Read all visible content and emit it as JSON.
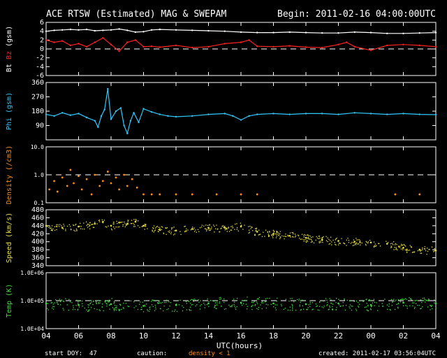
{
  "header": {
    "title": "ACE RTSW (Estimated) MAG & SWEPAM",
    "begin": "Begin: 2011-02-16 04:00:00UTC"
  },
  "colors": {
    "bt": "#ffffff",
    "bz": "#ff2020",
    "phi": "#2ec8ff",
    "density": "#ff8c1a",
    "speed": "#e8e040",
    "temp": "#40e040",
    "axis": "#ffffff"
  },
  "footer": {
    "start_doy_label": "start DOY:",
    "start_doy_value": "47",
    "caution_label": "caution:",
    "caution_note": "density < 1",
    "created": "created: 2011-02-17 03:56:04UTC"
  },
  "chart_data": {
    "type": "multi-panel time series",
    "x_label": "UTC(hours)",
    "x_range_hours": [
      4,
      28
    ],
    "x_tick_labels": [
      "04",
      "06",
      "08",
      "10",
      "12",
      "14",
      "16",
      "18",
      "20",
      "22",
      "00",
      "02",
      "04"
    ],
    "panels": [
      {
        "id": "mag",
        "ylabel_parts": [
          "Bt",
          "Bz",
          "(gsm)"
        ],
        "ylim": [
          -6,
          6
        ],
        "y_ticks": [
          -6,
          -4,
          -2,
          0,
          2,
          4,
          6
        ],
        "y_tick_labels": [
          "-6",
          "-4",
          "-2",
          "0",
          "2",
          "4",
          "6"
        ],
        "dashed_lines": [
          0
        ],
        "series": [
          {
            "name": "Bt",
            "style": "line",
            "points": [
              [
                4.0,
                4.0
              ],
              [
                4.5,
                4.2
              ],
              [
                5.0,
                4.3
              ],
              [
                5.5,
                4.4
              ],
              [
                6.0,
                4.3
              ],
              [
                6.5,
                4.4
              ],
              [
                7.0,
                4.1
              ],
              [
                7.5,
                4.2
              ],
              [
                8.0,
                4.3
              ],
              [
                8.5,
                4.5
              ],
              [
                9.0,
                4.2
              ],
              [
                9.5,
                3.8
              ],
              [
                10.0,
                3.9
              ],
              [
                10.5,
                4.3
              ],
              [
                11.0,
                4.4
              ],
              [
                12.0,
                4.3
              ],
              [
                13.0,
                4.2
              ],
              [
                14.0,
                4.1
              ],
              [
                15.0,
                4.0
              ],
              [
                16.0,
                3.8
              ],
              [
                17.0,
                3.7
              ],
              [
                18.0,
                3.7
              ],
              [
                19.0,
                3.8
              ],
              [
                20.0,
                3.7
              ],
              [
                21.0,
                3.6
              ],
              [
                22.0,
                3.6
              ],
              [
                23.0,
                3.8
              ],
              [
                24.0,
                3.7
              ],
              [
                25.0,
                3.5
              ],
              [
                26.0,
                3.5
              ],
              [
                27.0,
                3.6
              ],
              [
                28.0,
                3.7
              ]
            ]
          },
          {
            "name": "Bz",
            "style": "line",
            "points": [
              [
                4.0,
                2.0
              ],
              [
                4.5,
                1.5
              ],
              [
                5.0,
                1.8
              ],
              [
                5.5,
                0.8
              ],
              [
                6.0,
                1.2
              ],
              [
                6.5,
                0.5
              ],
              [
                7.0,
                1.5
              ],
              [
                7.5,
                2.5
              ],
              [
                8.0,
                1.0
              ],
              [
                8.5,
                -0.5
              ],
              [
                9.0,
                1.5
              ],
              [
                9.5,
                2.0
              ],
              [
                10.0,
                0.5
              ],
              [
                10.5,
                0.6
              ],
              [
                11.0,
                0.4
              ],
              [
                12.0,
                0.8
              ],
              [
                13.0,
                0.3
              ],
              [
                14.0,
                0.5
              ],
              [
                15.0,
                1.2
              ],
              [
                16.0,
                1.5
              ],
              [
                16.5,
                2.0
              ],
              [
                17.0,
                0.6
              ],
              [
                18.0,
                0.5
              ],
              [
                19.0,
                0.7
              ],
              [
                20.0,
                0.4
              ],
              [
                21.0,
                0.3
              ],
              [
                22.0,
                1.0
              ],
              [
                22.5,
                1.5
              ],
              [
                23.0,
                0.5
              ],
              [
                24.0,
                -0.3
              ],
              [
                25.0,
                0.8
              ],
              [
                26.0,
                1.0
              ],
              [
                27.0,
                0.8
              ],
              [
                28.0,
                0.5
              ]
            ]
          }
        ]
      },
      {
        "id": "phi",
        "ylabel_parts": [
          "Phi (gsm)"
        ],
        "ylim": [
          0,
          360
        ],
        "y_ticks": [
          90,
          180,
          270,
          360
        ],
        "y_tick_labels": [
          "90",
          "180",
          "270",
          "360"
        ],
        "dashed_lines": [],
        "series": [
          {
            "name": "Phi",
            "style": "line",
            "points": [
              [
                4.0,
                160
              ],
              [
                4.5,
                150
              ],
              [
                5.0,
                170
              ],
              [
                5.5,
                155
              ],
              [
                6.0,
                165
              ],
              [
                6.5,
                140
              ],
              [
                7.0,
                120
              ],
              [
                7.2,
                80
              ],
              [
                7.4,
                150
              ],
              [
                7.6,
                190
              ],
              [
                7.8,
                320
              ],
              [
                8.0,
                130
              ],
              [
                8.3,
                180
              ],
              [
                8.6,
                200
              ],
              [
                8.8,
                90
              ],
              [
                9.0,
                40
              ],
              [
                9.2,
                120
              ],
              [
                9.4,
                170
              ],
              [
                9.7,
                110
              ],
              [
                10.0,
                195
              ],
              [
                10.5,
                175
              ],
              [
                11.0,
                160
              ],
              [
                11.5,
                150
              ],
              [
                12.0,
                145
              ],
              [
                13.0,
                150
              ],
              [
                14.0,
                160
              ],
              [
                15.0,
                165
              ],
              [
                15.5,
                150
              ],
              [
                16.0,
                125
              ],
              [
                16.5,
                150
              ],
              [
                17.0,
                160
              ],
              [
                18.0,
                165
              ],
              [
                19.0,
                160
              ],
              [
                20.0,
                165
              ],
              [
                21.0,
                165
              ],
              [
                22.0,
                160
              ],
              [
                23.0,
                170
              ],
              [
                24.0,
                165
              ],
              [
                25.0,
                160
              ],
              [
                26.0,
                165
              ],
              [
                27.0,
                160
              ],
              [
                28.0,
                158
              ]
            ]
          }
        ]
      },
      {
        "id": "density",
        "ylabel_parts": [
          "Density (/cm3)"
        ],
        "scale": "log",
        "ylim": [
          0.1,
          10
        ],
        "y_ticks": [
          0.1,
          1,
          10
        ],
        "y_tick_labels": [
          "0.1",
          "1.0",
          "10.0"
        ],
        "dashed_lines": [
          1
        ],
        "series": [
          {
            "name": "Density",
            "style": "dots",
            "points": [
              [
                4.2,
                0.3
              ],
              [
                4.5,
                0.6
              ],
              [
                4.7,
                0.25
              ],
              [
                5.0,
                0.8
              ],
              [
                5.3,
                0.4
              ],
              [
                5.5,
                1.5
              ],
              [
                5.7,
                0.5
              ],
              [
                6.0,
                0.9
              ],
              [
                6.2,
                0.3
              ],
              [
                6.5,
                0.7
              ],
              [
                6.8,
                0.2
              ],
              [
                7.0,
                1.0
              ],
              [
                7.3,
                0.4
              ],
              [
                7.5,
                0.6
              ],
              [
                7.8,
                1.3
              ],
              [
                8.0,
                0.5
              ],
              [
                8.3,
                0.8
              ],
              [
                8.5,
                0.3
              ],
              [
                8.8,
                1.0
              ],
              [
                9.0,
                0.4
              ],
              [
                9.3,
                0.7
              ],
              [
                9.6,
                0.35
              ],
              [
                10.0,
                0.2
              ],
              [
                10.5,
                0.2
              ],
              [
                11.0,
                0.2
              ],
              [
                12.0,
                0.2
              ],
              [
                13.0,
                0.2
              ],
              [
                14.5,
                0.2
              ],
              [
                16.0,
                0.2
              ],
              [
                17.0,
                0.2
              ],
              [
                25.5,
                0.2
              ],
              [
                27.0,
                0.2
              ]
            ]
          }
        ]
      },
      {
        "id": "speed",
        "ylabel_parts": [
          "Speed (km/s)"
        ],
        "ylim": [
          340,
          480
        ],
        "y_ticks": [
          340,
          360,
          380,
          400,
          420,
          440,
          460,
          480
        ],
        "y_tick_labels": [
          "340",
          "360",
          "380",
          "400",
          "420",
          "440",
          "460",
          "480"
        ],
        "dashed_lines": [],
        "series": [
          {
            "name": "Speed",
            "style": "band",
            "spread": 10,
            "points": [
              [
                4.0,
                440
              ],
              [
                5.0,
                435
              ],
              [
                6.0,
                438
              ],
              [
                7.0,
                445
              ],
              [
                7.5,
                450
              ],
              [
                8.0,
                440
              ],
              [
                8.5,
                448
              ],
              [
                9.0,
                445
              ],
              [
                9.5,
                450
              ],
              [
                10.0,
                440
              ],
              [
                11.0,
                430
              ],
              [
                12.0,
                428
              ],
              [
                13.0,
                432
              ],
              [
                14.0,
                435
              ],
              [
                15.0,
                435
              ],
              [
                16.0,
                438
              ],
              [
                17.0,
                425
              ],
              [
                18.0,
                420
              ],
              [
                19.0,
                415
              ],
              [
                20.0,
                410
              ],
              [
                21.0,
                405
              ],
              [
                22.0,
                402
              ],
              [
                23.0,
                400
              ],
              [
                24.0,
                398
              ],
              [
                25.0,
                395
              ],
              [
                26.0,
                385
              ],
              [
                27.0,
                380
              ],
              [
                28.0,
                378
              ]
            ]
          }
        ]
      },
      {
        "id": "temp",
        "ylabel_parts": [
          "Temp (K)"
        ],
        "scale": "log",
        "ylim": [
          10000,
          1000000
        ],
        "y_ticks": [
          10000,
          100000,
          1000000
        ],
        "y_tick_labels": [
          "1.0E+04",
          "1.0E+05",
          "1.0E+06"
        ],
        "dashed_lines": [
          100000
        ],
        "series": [
          {
            "name": "Temp",
            "style": "band",
            "spread": 0.22,
            "points": [
              [
                4.0,
                80000
              ],
              [
                6.0,
                70000
              ],
              [
                8.0,
                75000
              ],
              [
                10.0,
                65000
              ],
              [
                12.0,
                70000
              ],
              [
                14.0,
                80000
              ],
              [
                16.0,
                85000
              ],
              [
                18.0,
                80000
              ],
              [
                20.0,
                75000
              ],
              [
                22.0,
                80000
              ],
              [
                24.0,
                70000
              ],
              [
                26.0,
                85000
              ],
              [
                28.0,
                80000
              ]
            ]
          }
        ]
      }
    ]
  }
}
